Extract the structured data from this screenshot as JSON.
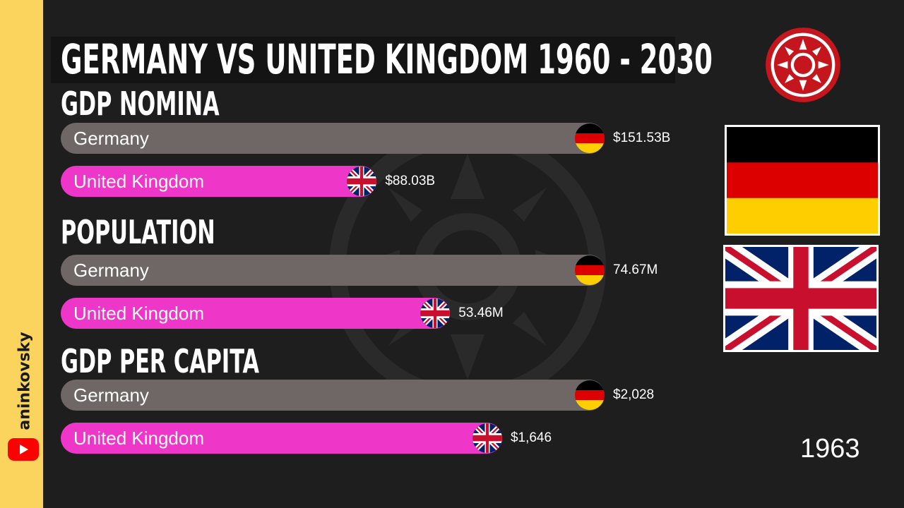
{
  "title": "GERMANY VS UNITED KINGDOM 1960 - 2030",
  "year": "1963",
  "channel": "aninkovsky",
  "colors": {
    "germany_bar": "#6e6766",
    "uk_bar": "#ee36c9",
    "background": "#1f1e1f",
    "side_strip": "#fbd45e"
  },
  "icons": [
    "youtube-icon",
    "sun-emblem-icon",
    "germany-flag-icon",
    "uk-flag-icon"
  ],
  "chart_data": [
    {
      "type": "bar",
      "orientation": "horizontal",
      "title": "GDP NOMINA",
      "categories": [
        "Germany",
        "United Kingdom"
      ],
      "values": [
        151.53,
        88.03
      ],
      "value_labels": [
        "$151.53B",
        "$88.03B"
      ],
      "unit": "USD billions"
    },
    {
      "type": "bar",
      "orientation": "horizontal",
      "title": "POPULATION",
      "categories": [
        "Germany",
        "United Kingdom"
      ],
      "values": [
        74.67,
        53.46
      ],
      "value_labels": [
        "74.67M",
        "53.46M"
      ],
      "unit": "millions"
    },
    {
      "type": "bar",
      "orientation": "horizontal",
      "title": "GDP PER CAPITA",
      "categories": [
        "Germany",
        "United Kingdom"
      ],
      "values": [
        2028,
        1646
      ],
      "value_labels": [
        "$2,028",
        "$1,646"
      ],
      "unit": "USD"
    }
  ]
}
